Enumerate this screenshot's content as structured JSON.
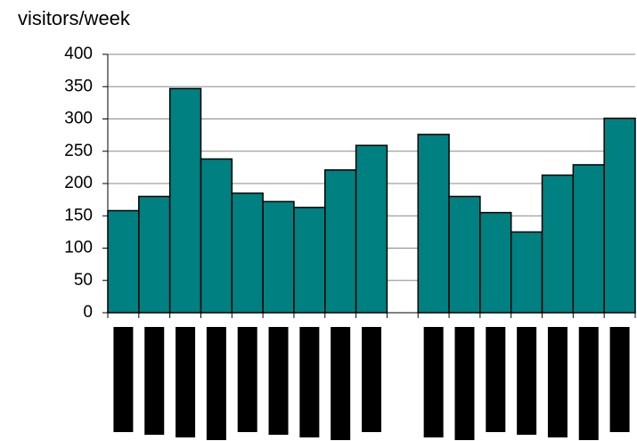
{
  "chart_data": {
    "type": "bar",
    "y_label": "visitors/week",
    "categories": [
      null,
      null,
      null,
      null,
      null,
      null,
      null,
      null,
      null,
      null,
      null,
      null,
      null,
      null,
      null,
      null,
      null
    ],
    "values": [
      158,
      180,
      347,
      238,
      185,
      172,
      163,
      221,
      259,
      null,
      276,
      180,
      155,
      125,
      213,
      229,
      301
    ],
    "color": "#008080",
    "ylim": [
      0,
      400
    ],
    "yticks": [
      0,
      50,
      100,
      150,
      200,
      250,
      300,
      350,
      400
    ],
    "grid": true
  }
}
